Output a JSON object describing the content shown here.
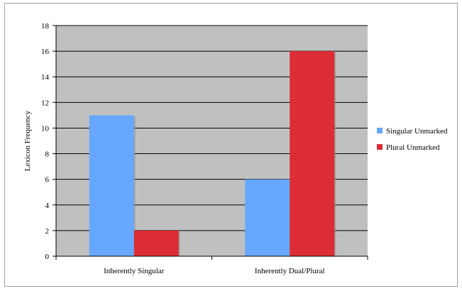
{
  "chart_data": {
    "type": "bar",
    "categories": [
      "Inherently Singular",
      "Inherently Dual/Plural"
    ],
    "series": [
      {
        "name": "Singular Unmarked",
        "values": [
          11,
          6
        ],
        "color": "#66a8ff"
      },
      {
        "name": "Plural Unmarked",
        "values": [
          2,
          16
        ],
        "color": "#dd2c35"
      }
    ],
    "title": "",
    "xlabel": "",
    "ylabel": "Lexicon Frequency",
    "ylim": [
      0,
      18
    ],
    "yticks": [
      "0",
      "2",
      "4",
      "6",
      "8",
      "10",
      "12",
      "14",
      "16",
      "18"
    ],
    "grid": true,
    "legend_position": "right",
    "plot_background": "#c0c0c0"
  }
}
